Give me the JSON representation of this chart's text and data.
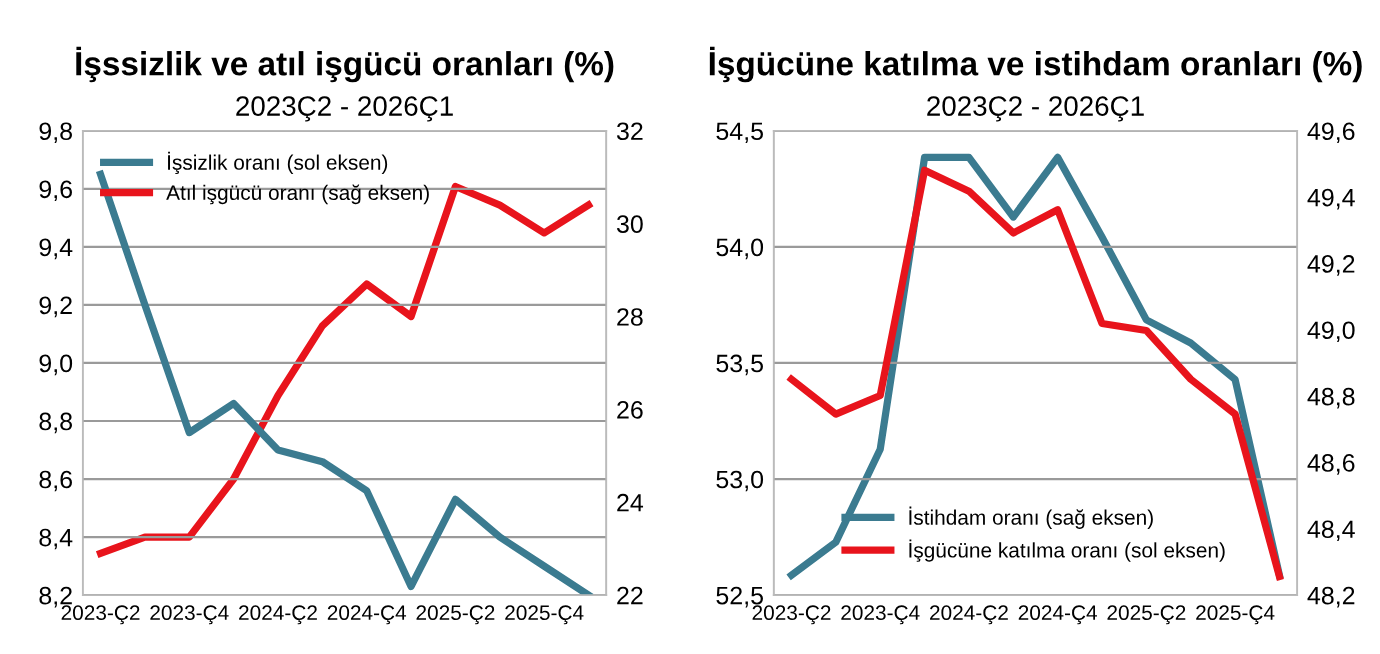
{
  "chart_data": [
    {
      "type": "line",
      "title": "İşssizlik ve atıl işgücü oranları (%)",
      "subtitle": "2023Ç2 - 2026Ç1",
      "categories": [
        "2023-Ç2",
        null,
        "2023-Ç4",
        null,
        "2024-Ç2",
        null,
        "2024-Ç4",
        null,
        "2025-Ç2",
        null,
        "2025-Ç4",
        null
      ],
      "series": [
        {
          "name": "İşsizlik oranı (sol eksen)",
          "color": "#3b7b90",
          "axis": "y",
          "values": [
            9.65,
            9.2,
            8.76,
            8.86,
            8.7,
            8.66,
            8.56,
            8.23,
            8.53,
            8.4,
            8.3,
            8.2
          ]
        },
        {
          "name": "Atıl işgücü oranı (sağ eksen)",
          "color": "#e8141c",
          "axis": "y2",
          "values": [
            22.9,
            23.25,
            23.25,
            24.5,
            26.3,
            27.8,
            28.7,
            28.0,
            30.8,
            30.4,
            29.8,
            30.4
          ]
        }
      ],
      "ylim": [
        8.2,
        9.8
      ],
      "yticks": [
        {
          "value": 8.2,
          "label": "8,2"
        },
        {
          "value": 8.4,
          "label": "8,4"
        },
        {
          "value": 8.6,
          "label": "8,6"
        },
        {
          "value": 8.8,
          "label": "8,8"
        },
        {
          "value": 9.0,
          "label": "9,0"
        },
        {
          "value": 9.2,
          "label": "9,2"
        },
        {
          "value": 9.4,
          "label": "9,4"
        },
        {
          "value": 9.6,
          "label": "9,6"
        },
        {
          "value": 9.8,
          "label": "9,8"
        }
      ],
      "y2lim": [
        22,
        32
      ],
      "y2ticks": [
        22,
        24,
        26,
        28,
        30,
        32
      ],
      "grid": "y",
      "legend": "top left",
      "marker": "none",
      "line_style": "solid"
    },
    {
      "type": "line",
      "title": "İşgücüne katılma ve istihdam oranları (%)",
      "subtitle": "2023Ç2 - 2026Ç1",
      "categories": [
        "2023-Ç2",
        null,
        "2023-Ç4",
        null,
        "2024-Ç2",
        null,
        "2024-Ç4",
        null,
        "2025-Ç2",
        null,
        "2025-Ç4",
        null
      ],
      "series": [
        {
          "name": "İstihdam oranı (sağ eksen)",
          "color": "#3b7b90",
          "axis": "y2",
          "values": [
            48.26,
            48.36,
            48.64,
            49.52,
            49.52,
            49.34,
            49.52,
            49.28,
            49.03,
            48.96,
            48.85,
            48.26
          ]
        },
        {
          "name": "İşgücüne katılma oranı (sol eksen)",
          "color": "#e8141c",
          "axis": "y",
          "values": [
            53.43,
            53.28,
            53.36,
            54.33,
            54.24,
            54.06,
            54.16,
            53.67,
            53.64,
            53.43,
            53.28,
            52.58
          ]
        }
      ],
      "ylim": [
        52.5,
        54.5
      ],
      "yticks": [
        {
          "value": 52.5,
          "label": "52,5"
        },
        {
          "value": 53.0,
          "label": "53,0"
        },
        {
          "value": 53.5,
          "label": "53,5"
        },
        {
          "value": 54.0,
          "label": "54,0"
        },
        {
          "value": 54.5,
          "label": "54,5"
        }
      ],
      "y2lim": [
        48.2,
        49.6
      ],
      "y2ticks": [
        {
          "value": 48.2,
          "label": "48,2"
        },
        {
          "value": 48.4,
          "label": "48,4"
        },
        {
          "value": 48.6,
          "label": "48,6"
        },
        {
          "value": 48.8,
          "label": "48,8"
        },
        {
          "value": 49.0,
          "label": "49,0"
        },
        {
          "value": 49.2,
          "label": "49,2"
        },
        {
          "value": 49.4,
          "label": "49,4"
        },
        {
          "value": 49.6,
          "label": "49,6"
        }
      ],
      "grid": "y",
      "legend": "bottom",
      "marker": "none",
      "line_style": "solid"
    }
  ]
}
